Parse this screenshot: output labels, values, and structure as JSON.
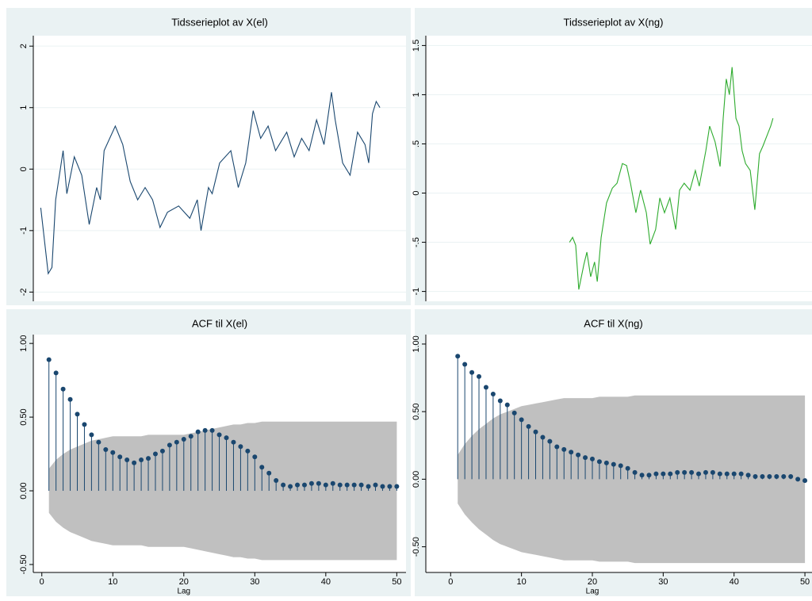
{
  "chart_data": [
    {
      "type": "line",
      "title": "Tidsserieplot av X(el)",
      "color": "#1a476f",
      "grid": true,
      "xlim": [
        0,
        100
      ],
      "ylim": [
        -2.15,
        2.17
      ],
      "yticks": [
        -2,
        -1,
        0,
        1,
        2
      ],
      "x": [
        2,
        4,
        5,
        6,
        8,
        9,
        11,
        13,
        15,
        17,
        18,
        19,
        22,
        24,
        26,
        28,
        30,
        32,
        34,
        36,
        39,
        42,
        44,
        45,
        47,
        48,
        50,
        53,
        55,
        57,
        59,
        61,
        63,
        65,
        68,
        70,
        72,
        74,
        76,
        78,
        80,
        81,
        83,
        85,
        87,
        89,
        90,
        91,
        92,
        93
      ],
      "values": [
        -0.63,
        -1.7,
        -1.6,
        -0.5,
        0.3,
        -0.4,
        0.2,
        -0.1,
        -0.9,
        -0.3,
        -0.5,
        0.3,
        0.7,
        0.4,
        -0.2,
        -0.5,
        -0.3,
        -0.5,
        -0.95,
        -0.7,
        -0.6,
        -0.8,
        -0.5,
        -1.0,
        -0.3,
        -0.4,
        0.1,
        0.3,
        -0.3,
        0.1,
        0.95,
        0.5,
        0.7,
        0.3,
        0.6,
        0.2,
        0.5,
        0.3,
        0.8,
        0.4,
        1.25,
        0.8,
        0.1,
        -0.1,
        0.6,
        0.4,
        0.1,
        0.9,
        1.1,
        1.0
      ]
    },
    {
      "type": "line",
      "title": "Tidsserieplot av X(ng)",
      "color": "#2eab2e",
      "grid": true,
      "xlim": [
        0,
        100
      ],
      "ylim": [
        -1.1,
        1.6
      ],
      "yticks": [
        -1,
        {
          "value": -0.5,
          "label": "-.5"
        },
        0,
        {
          "value": 0.5,
          "label": ".5"
        },
        1,
        {
          "value": 1.5,
          "label": "1.5"
        }
      ],
      "x": [
        37.2,
        38,
        38.8,
        39.6,
        40.9,
        41.7,
        42.7,
        43.7,
        44.4,
        45.4,
        46.8,
        48.3,
        49.5,
        50.9,
        52,
        53,
        54.4,
        55.6,
        57.1,
        58.1,
        59.5,
        60.6,
        61.8,
        63.2,
        64.7,
        65.7,
        66.9,
        68.4,
        69.8,
        70.8,
        72.5,
        73.5,
        74.9,
        76.2,
        77,
        77.8,
        78.6,
        79.3,
        80.3,
        81.1,
        81.9,
        82.8,
        84,
        85.2,
        86.4,
        87.3,
        88.5,
        89.3,
        89.9
      ],
      "values": [
        -0.5,
        -0.45,
        -0.53,
        -0.98,
        -0.73,
        -0.6,
        -0.85,
        -0.7,
        -0.9,
        -0.45,
        -0.1,
        0.05,
        0.1,
        0.3,
        0.28,
        0.1,
        -0.2,
        0.03,
        -0.2,
        -0.52,
        -0.37,
        -0.05,
        -0.2,
        -0.05,
        -0.37,
        0.03,
        0.1,
        0.03,
        0.23,
        0.07,
        0.43,
        0.68,
        0.52,
        0.27,
        0.76,
        1.16,
        1.0,
        1.28,
        0.76,
        0.68,
        0.43,
        0.3,
        0.23,
        -0.17,
        0.4,
        0.48,
        0.6,
        0.68,
        0.76
      ]
    },
    {
      "type": "stem",
      "title": "ACF til X(el)",
      "xlabel": "Lag",
      "color": "#1a476f",
      "band_color": "#c0c0c0",
      "xlim": [
        -1.2,
        51.3
      ],
      "ylim": [
        -0.554,
        1.06
      ],
      "xticks": [
        0,
        10,
        20,
        30,
        40,
        50
      ],
      "yticks": [
        {
          "value": -0.5,
          "label": "-0.50"
        },
        {
          "value": 0,
          "label": "0.00"
        },
        {
          "value": 0.5,
          "label": "0.50"
        },
        {
          "value": 1,
          "label": "1.00"
        }
      ],
      "x": [
        1,
        2,
        3,
        4,
        5,
        6,
        7,
        8,
        9,
        10,
        11,
        12,
        13,
        14,
        15,
        16,
        17,
        18,
        19,
        20,
        21,
        22,
        23,
        24,
        25,
        26,
        27,
        28,
        29,
        30,
        31,
        32,
        33,
        34,
        35,
        36,
        37,
        38,
        39,
        40,
        41,
        42,
        43,
        44,
        45,
        46,
        47,
        48,
        49,
        50
      ],
      "values": [
        0.89,
        0.8,
        0.69,
        0.62,
        0.52,
        0.45,
        0.38,
        0.33,
        0.28,
        0.26,
        0.23,
        0.21,
        0.19,
        0.21,
        0.22,
        0.25,
        0.27,
        0.31,
        0.33,
        0.35,
        0.37,
        0.4,
        0.41,
        0.41,
        0.38,
        0.36,
        0.33,
        0.3,
        0.27,
        0.23,
        0.16,
        0.12,
        0.07,
        0.04,
        0.03,
        0.04,
        0.04,
        0.05,
        0.05,
        0.04,
        0.05,
        0.04,
        0.04,
        0.04,
        0.04,
        0.03,
        0.04,
        0.03,
        0.03,
        0.03
      ],
      "band": [
        0.15,
        0.21,
        0.25,
        0.28,
        0.3,
        0.32,
        0.34,
        0.35,
        0.36,
        0.37,
        0.37,
        0.37,
        0.37,
        0.37,
        0.38,
        0.38,
        0.38,
        0.38,
        0.38,
        0.38,
        0.39,
        0.4,
        0.41,
        0.42,
        0.43,
        0.44,
        0.45,
        0.45,
        0.46,
        0.46,
        0.47,
        0.47,
        0.47,
        0.47,
        0.47,
        0.47,
        0.47,
        0.47,
        0.47,
        0.47,
        0.47,
        0.47,
        0.47,
        0.47,
        0.47,
        0.47,
        0.47,
        0.47,
        0.47,
        0.47
      ]
    },
    {
      "type": "stem",
      "title": "ACF til X(ng)",
      "xlabel": "Lag",
      "color": "#1a476f",
      "band_color": "#c0c0c0",
      "xlim": [
        -3.5,
        51
      ],
      "ylim": [
        -0.69,
        1.07
      ],
      "xticks": [
        0,
        10,
        20,
        30,
        40,
        50
      ],
      "yticks": [
        {
          "value": -0.5,
          "label": "-0.50"
        },
        {
          "value": 0,
          "label": "0.00"
        },
        {
          "value": 0.5,
          "label": "0.50"
        },
        {
          "value": 1,
          "label": "1.00"
        }
      ],
      "x": [
        1,
        2,
        3,
        4,
        5,
        6,
        7,
        8,
        9,
        10,
        11,
        12,
        13,
        14,
        15,
        16,
        17,
        18,
        19,
        20,
        21,
        22,
        23,
        24,
        25,
        26,
        27,
        28,
        29,
        30,
        31,
        32,
        33,
        34,
        35,
        36,
        37,
        38,
        39,
        40,
        41,
        42,
        43,
        44,
        45,
        46,
        47,
        48,
        49,
        50
      ],
      "values": [
        0.91,
        0.85,
        0.79,
        0.76,
        0.68,
        0.63,
        0.58,
        0.55,
        0.49,
        0.44,
        0.39,
        0.35,
        0.31,
        0.28,
        0.24,
        0.22,
        0.2,
        0.18,
        0.16,
        0.15,
        0.13,
        0.12,
        0.11,
        0.1,
        0.08,
        0.05,
        0.03,
        0.03,
        0.04,
        0.04,
        0.04,
        0.05,
        0.05,
        0.05,
        0.04,
        0.05,
        0.05,
        0.04,
        0.04,
        0.04,
        0.04,
        0.03,
        0.02,
        0.02,
        0.02,
        0.02,
        0.02,
        0.02,
        0.0,
        -0.01
      ],
      "band": [
        0.18,
        0.26,
        0.32,
        0.37,
        0.41,
        0.45,
        0.48,
        0.5,
        0.52,
        0.54,
        0.55,
        0.56,
        0.57,
        0.58,
        0.59,
        0.6,
        0.6,
        0.6,
        0.6,
        0.6,
        0.61,
        0.61,
        0.61,
        0.61,
        0.61,
        0.62,
        0.62,
        0.62,
        0.62,
        0.62,
        0.62,
        0.62,
        0.62,
        0.62,
        0.62,
        0.62,
        0.62,
        0.62,
        0.62,
        0.62,
        0.62,
        0.62,
        0.62,
        0.62,
        0.62,
        0.62,
        0.62,
        0.62,
        0.62,
        0.62
      ]
    }
  ]
}
